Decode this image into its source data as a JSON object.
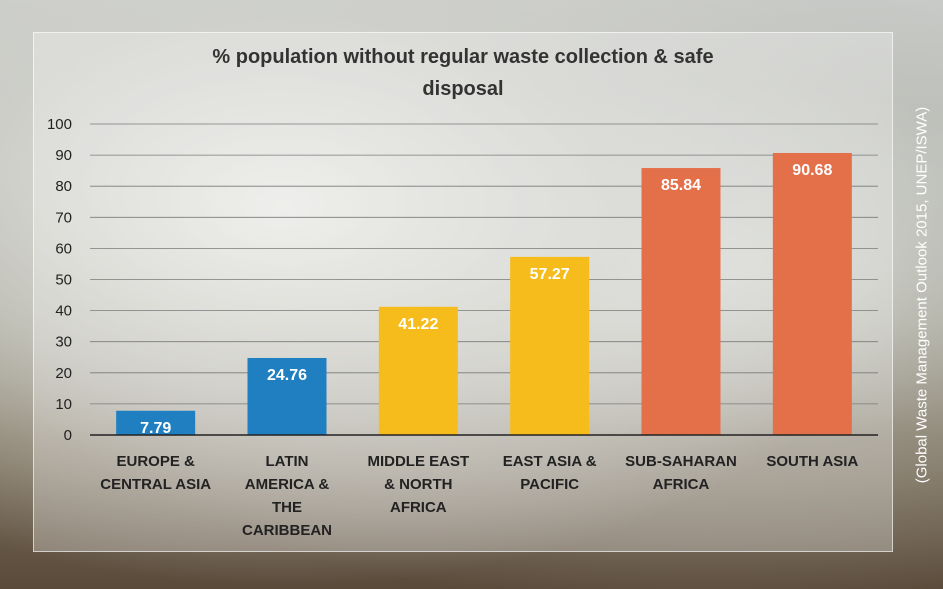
{
  "chart_data": {
    "type": "bar",
    "title_lines": [
      "% population without regular waste collection & safe",
      "disposal"
    ],
    "categories": [
      [
        "EUROPE &",
        "CENTRAL ASIA"
      ],
      [
        "LATIN",
        "AMERICA &",
        "THE",
        "CARIBBEAN"
      ],
      [
        "MIDDLE EAST",
        "& NORTH",
        "AFRICA"
      ],
      [
        "EAST ASIA &",
        "PACIFIC"
      ],
      [
        "SUB-SAHARAN",
        "AFRICA"
      ],
      [
        "SOUTH ASIA"
      ]
    ],
    "values": [
      7.79,
      24.76,
      41.22,
      57.27,
      85.84,
      90.68
    ],
    "value_labels": [
      "7.79",
      "24.76",
      "41.22",
      "57.27",
      "85.84",
      "90.68"
    ],
    "bar_colors": [
      "#1f7fc0",
      "#1f7fc0",
      "#f5bc1c",
      "#f5bc1c",
      "#e4704a",
      "#e4704a"
    ],
    "ylim": [
      0,
      100
    ],
    "yticks": [
      0,
      10,
      20,
      30,
      40,
      50,
      60,
      70,
      80,
      90,
      100
    ],
    "grid": true,
    "legend": "none"
  },
  "source_note": "(Global Waste Management Outlook 2015, UNEP/ISWA)"
}
